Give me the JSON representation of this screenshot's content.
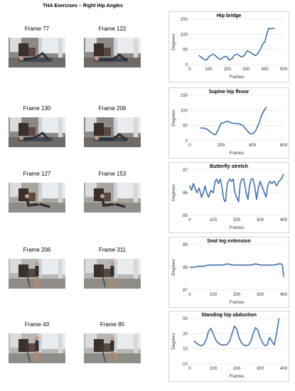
{
  "page": {
    "title": "THA Exercises – Right Hip Angles"
  },
  "rows": [
    {
      "frames": [
        "Frame 77",
        "Frame 122"
      ],
      "scene": "floor"
    },
    {
      "frames": [
        "Frame 130",
        "Frame 206"
      ],
      "scene": "floor"
    },
    {
      "frames": [
        "Frame 127",
        "Frame 153"
      ],
      "scene": "sitting"
    },
    {
      "frames": [
        "Frame 206",
        "Frame 311"
      ],
      "scene": "standing"
    },
    {
      "frames": [
        "Frame 43",
        "Frame 85"
      ],
      "scene": "standing"
    }
  ],
  "chart_data": [
    {
      "type": "line",
      "title": "Hip bridge",
      "xlabel": "Frames",
      "ylabel": "Degrees",
      "xlim": [
        0,
        500
      ],
      "ylim": [
        0,
        150
      ],
      "xticks": [
        0,
        100,
        200,
        300,
        400,
        500
      ],
      "yticks": [
        0,
        50,
        100,
        150
      ],
      "grid": "horizontal",
      "color": "#3d72b0",
      "x": [
        50,
        60,
        75,
        90,
        100,
        110,
        125,
        140,
        155,
        165,
        180,
        195,
        210,
        225,
        235,
        250,
        265,
        275,
        290,
        305,
        320,
        335,
        350,
        360,
        370,
        380,
        390,
        400,
        410,
        420,
        430,
        440,
        450
      ],
      "y": [
        30,
        25,
        18,
        15,
        25,
        30,
        35,
        28,
        20,
        17,
        25,
        28,
        15,
        20,
        30,
        35,
        30,
        25,
        30,
        45,
        42,
        35,
        30,
        35,
        45,
        55,
        70,
        75,
        100,
        120,
        118,
        120,
        120
      ]
    },
    {
      "type": "line",
      "title": "Supine hip flexor",
      "xlabel": "Frames",
      "ylabel": "Degrees",
      "xlim": [
        0,
        600
      ],
      "ylim": [
        0,
        150
      ],
      "xticks": [
        0,
        200,
        400,
        600
      ],
      "yticks": [
        0,
        50,
        100,
        150
      ],
      "grid": "horizontal",
      "color": "#3d72b0",
      "x": [
        70,
        90,
        110,
        130,
        150,
        165,
        180,
        200,
        220,
        240,
        260,
        280,
        300,
        320,
        340,
        360,
        380,
        400,
        420,
        440,
        460,
        480,
        490
      ],
      "y": [
        42,
        42,
        38,
        30,
        22,
        20,
        35,
        58,
        60,
        65,
        60,
        57,
        57,
        55,
        50,
        38,
        25,
        22,
        32,
        55,
        85,
        105,
        110
      ]
    },
    {
      "type": "line",
      "title": "Butterfly stretch",
      "xlabel": "Frames",
      "ylabel": "Degrees",
      "xlim": [
        0,
        400
      ],
      "ylim": [
        85,
        87
      ],
      "xticks": [
        0,
        100,
        200,
        300,
        400
      ],
      "yticks": [
        85,
        86,
        87
      ],
      "grid": "horizontal",
      "color": "#3d72b0",
      "x": [
        0,
        8,
        15,
        22,
        30,
        40,
        50,
        58,
        65,
        72,
        80,
        90,
        100,
        108,
        115,
        122,
        130,
        138,
        145,
        152,
        160,
        170,
        178,
        185,
        192,
        200,
        208,
        215,
        222,
        230,
        240,
        248,
        255,
        262,
        270,
        278,
        285,
        292,
        300,
        310,
        318,
        325,
        332,
        340,
        350,
        360,
        370,
        380,
        390,
        400
      ],
      "y": [
        86.3,
        86.1,
        86.4,
        86.2,
        86.0,
        86.2,
        85.8,
        86.0,
        86.3,
        86.0,
        85.8,
        86.1,
        86.0,
        86.5,
        86.6,
        86.4,
        86.6,
        86.2,
        85.7,
        85.6,
        86.4,
        86.6,
        86.5,
        86.6,
        86.0,
        85.8,
        85.6,
        86.4,
        86.6,
        86.6,
        86.0,
        85.7,
        86.3,
        86.6,
        86.6,
        86.2,
        85.7,
        86.2,
        86.5,
        86.2,
        86.0,
        85.8,
        86.3,
        86.5,
        86.4,
        86.5,
        86.3,
        86.5,
        86.6,
        86.8
      ]
    },
    {
      "type": "line",
      "title": "Seat leg extension",
      "xlabel": "Frames",
      "ylabel": "Degrees",
      "xlim": [
        0,
        400
      ],
      "ylim": [
        87,
        89
      ],
      "xticks": [
        0,
        100,
        200,
        300,
        400
      ],
      "yticks": [
        87,
        88,
        89
      ],
      "grid": "horizontal",
      "color": "#3d72b0",
      "x": [
        0,
        20,
        40,
        60,
        80,
        100,
        120,
        140,
        160,
        180,
        200,
        220,
        240,
        260,
        280,
        300,
        320,
        340,
        360,
        380,
        390,
        395,
        400
      ],
      "y": [
        88.0,
        88.0,
        88.05,
        88.05,
        88.1,
        88.1,
        88.1,
        88.1,
        88.15,
        88.1,
        88.1,
        88.1,
        88.1,
        88.1,
        88.15,
        88.1,
        88.1,
        88.1,
        88.1,
        88.15,
        88.15,
        88.1,
        87.6
      ]
    },
    {
      "type": "line",
      "title": "Standing hip abduction",
      "xlabel": "Frames",
      "ylabel": "Degrees",
      "xlim": [
        0,
        400
      ],
      "ylim": [
        -10,
        50
      ],
      "xticks": [
        0,
        100,
        200,
        300,
        400
      ],
      "yticks": [
        -10,
        10,
        30,
        50
      ],
      "grid": "horizontal",
      "color": "#3d72b0",
      "x": [
        20,
        30,
        40,
        50,
        60,
        70,
        80,
        90,
        100,
        110,
        120,
        130,
        140,
        150,
        160,
        170,
        180,
        190,
        200,
        210,
        220,
        230,
        240,
        250,
        260,
        270,
        280,
        290,
        300,
        310,
        320,
        330,
        340,
        350,
        360,
        370,
        380
      ],
      "y": [
        20,
        17,
        15,
        14,
        16,
        22,
        33,
        37,
        30,
        22,
        18,
        16,
        15,
        15,
        16,
        20,
        30,
        40,
        36,
        25,
        18,
        15,
        14,
        15,
        20,
        30,
        38,
        35,
        25,
        18,
        14,
        15,
        25,
        20,
        15,
        30,
        50
      ]
    }
  ]
}
